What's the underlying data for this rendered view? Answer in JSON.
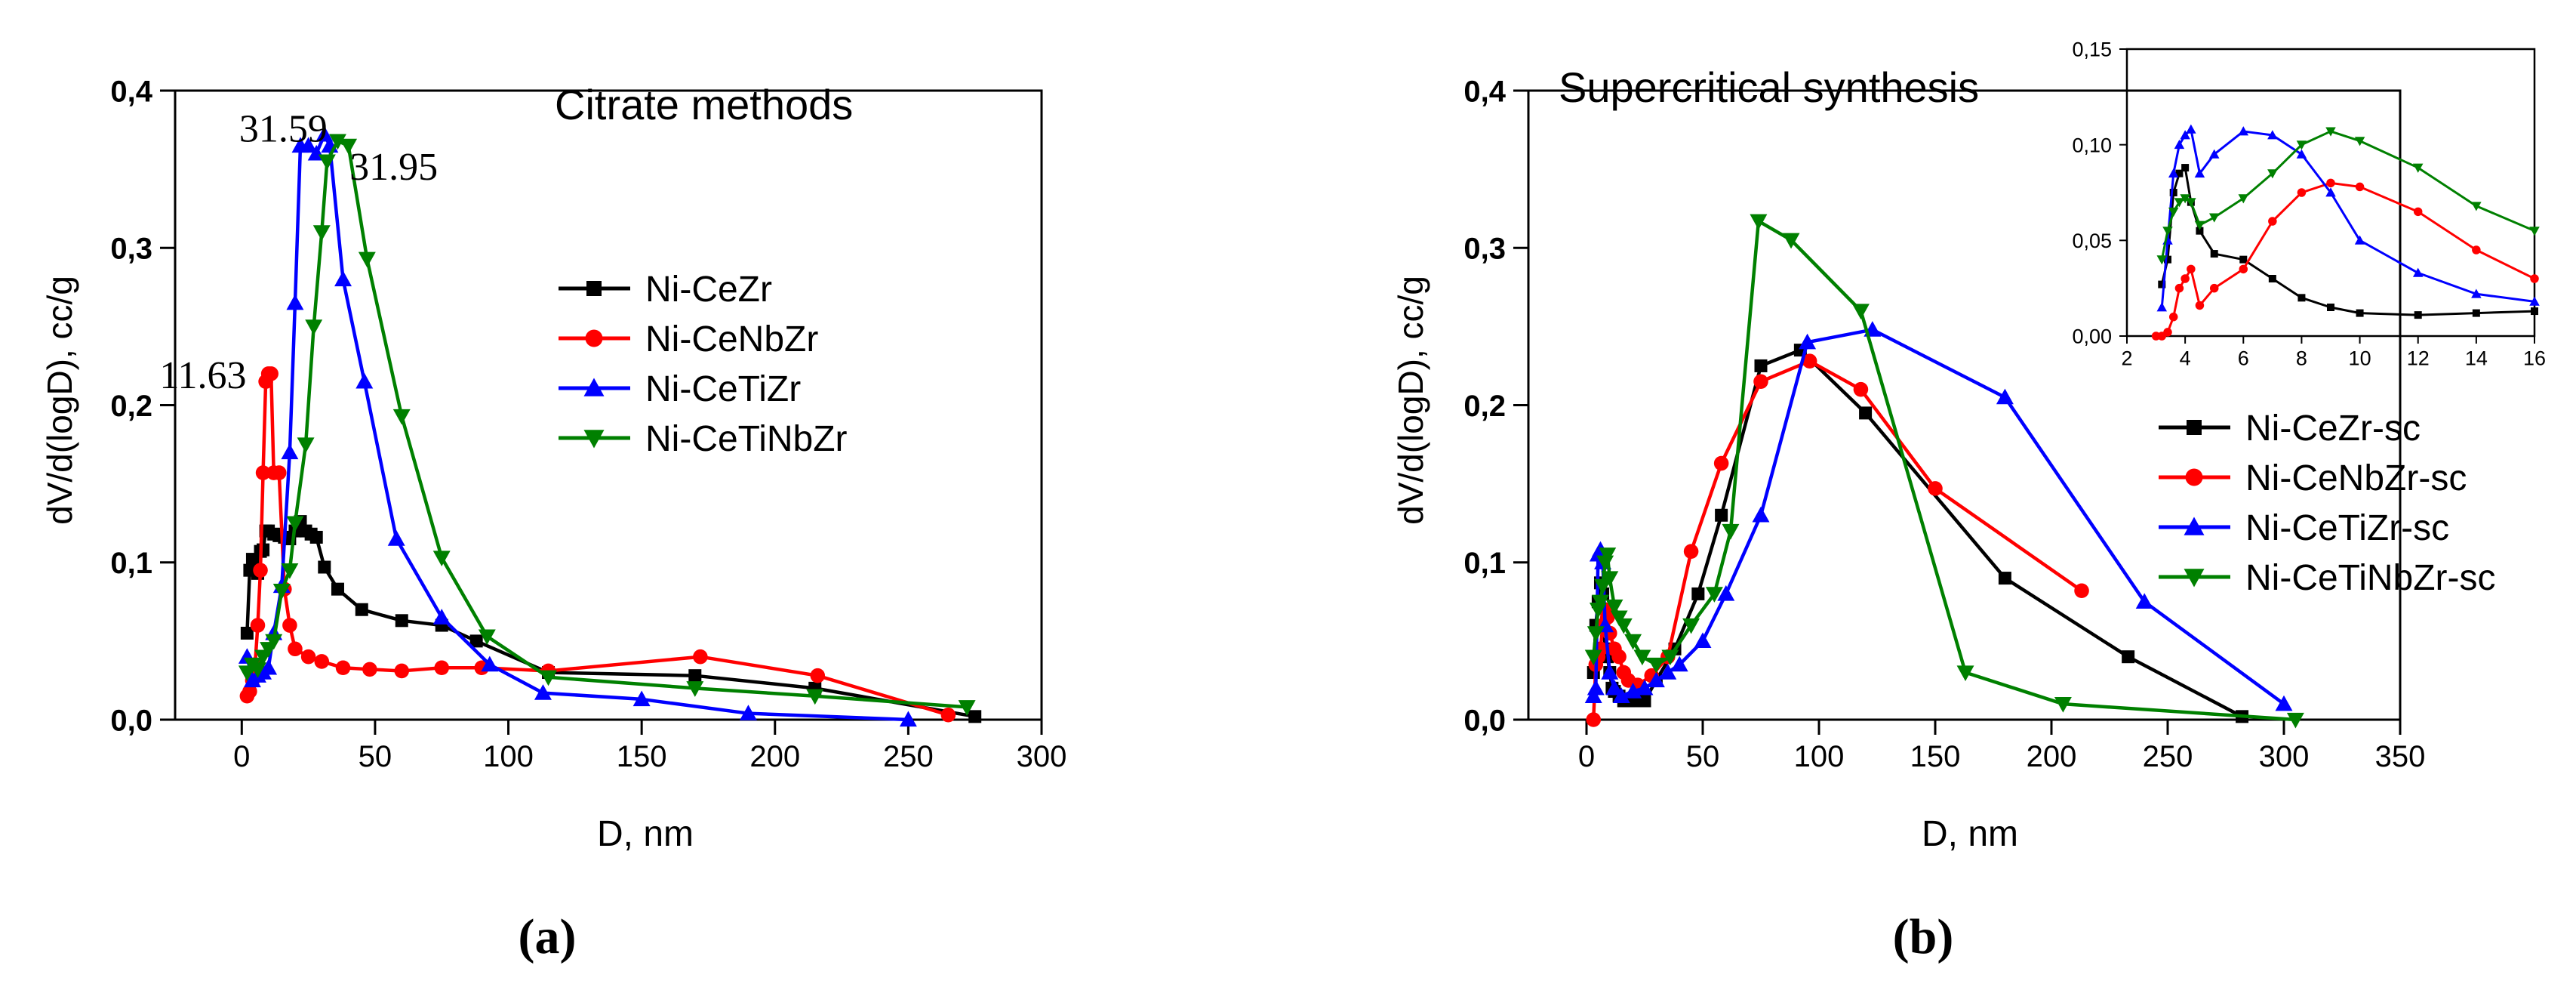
{
  "chart_data": [
    {
      "type": "line",
      "panel_label": "(a)",
      "title": "Citrate methods",
      "xlabel": "D, nm",
      "ylabel": "dV/d(logD), cc/g",
      "xlim": [
        -25,
        300
      ],
      "ylim": [
        0,
        0.4
      ],
      "xticks": [
        "0",
        "50",
        "100",
        "150",
        "200",
        "250",
        "300"
      ],
      "yticks": [
        "0,0",
        "0,1",
        "0,2",
        "0,3",
        "0,4"
      ],
      "legend_position": "right",
      "annotations": [
        {
          "text": "31.59",
          "x": 31.59,
          "y": 0.37
        },
        {
          "text": "31.95",
          "x": 31.95,
          "y": 0.365
        },
        {
          "text": "11.63",
          "x": 11.63,
          "y": 0.218
        }
      ],
      "series": [
        {
          "name": "Ni-CeZr",
          "color": "#000000",
          "marker": "square",
          "x": [
            2,
            3,
            4,
            5,
            6,
            7,
            8,
            9,
            10,
            12,
            14,
            16,
            18,
            20,
            22,
            24,
            26,
            28,
            31,
            36,
            45,
            60,
            75,
            88,
            115,
            170,
            215,
            275
          ],
          "y": [
            0.055,
            0.095,
            0.102,
            0.098,
            0.093,
            0.107,
            0.108,
            0.12,
            0.12,
            0.118,
            0.117,
            0.116,
            0.115,
            0.12,
            0.126,
            0.12,
            0.118,
            0.116,
            0.097,
            0.083,
            0.07,
            0.063,
            0.06,
            0.05,
            0.03,
            0.028,
            0.02,
            0.002
          ]
        },
        {
          "name": "Ni-CeNbZr",
          "color": "#ff0000",
          "marker": "circle",
          "x": [
            2,
            3,
            4,
            5,
            6,
            7,
            8,
            9,
            10,
            11,
            12,
            14,
            16,
            18,
            20,
            25,
            30,
            38,
            48,
            60,
            75,
            90,
            115,
            172,
            216,
            265
          ],
          "y": [
            0.015,
            0.018,
            0.025,
            0.035,
            0.06,
            0.095,
            0.157,
            0.215,
            0.22,
            0.22,
            0.157,
            0.157,
            0.083,
            0.06,
            0.045,
            0.04,
            0.037,
            0.033,
            0.032,
            0.031,
            0.033,
            0.033,
            0.031,
            0.04,
            0.028,
            0.003
          ]
        },
        {
          "name": "Ni-CeTiZr",
          "color": "#0000ff",
          "marker": "triangle-up",
          "x": [
            2,
            4,
            6,
            8,
            10,
            12,
            15,
            18,
            20,
            22,
            25,
            28,
            31,
            33,
            38,
            46,
            58,
            75,
            93,
            113,
            150,
            190,
            250
          ],
          "y": [
            0.04,
            0.025,
            0.028,
            0.03,
            0.033,
            0.055,
            0.085,
            0.17,
            0.265,
            0.365,
            0.365,
            0.36,
            0.372,
            0.365,
            0.28,
            0.215,
            0.115,
            0.065,
            0.035,
            0.017,
            0.013,
            0.004,
            0
          ]
        },
        {
          "name": "Ni-CeTiNbZr",
          "color": "#008000",
          "marker": "triangle-down",
          "x": [
            2,
            4,
            6,
            8,
            10,
            12,
            15,
            18,
            20,
            24,
            27,
            30,
            32,
            36,
            40,
            47,
            60,
            75,
            92,
            115,
            170,
            215,
            272
          ],
          "y": [
            0.03,
            0.035,
            0.032,
            0.04,
            0.045,
            0.05,
            0.082,
            0.095,
            0.125,
            0.175,
            0.25,
            0.31,
            0.355,
            0.368,
            0.365,
            0.293,
            0.193,
            0.103,
            0.053,
            0.027,
            0.02,
            0.015,
            0.008
          ]
        }
      ]
    },
    {
      "type": "line",
      "panel_label": "(b)",
      "title": "Supercritical synthesis",
      "xlabel": "D, nm",
      "ylabel": "dV/d(logD), cc/g",
      "xlim": [
        -25,
        350
      ],
      "ylim": [
        0,
        0.4
      ],
      "xticks": [
        "0",
        "50",
        "100",
        "150",
        "200",
        "250",
        "300",
        "350"
      ],
      "yticks": [
        "0,0",
        "0,1",
        "0,2",
        "0,3",
        "0,4"
      ],
      "legend_position": "right",
      "series": [
        {
          "name": "Ni-CeZr-sc",
          "color": "#000000",
          "marker": "square",
          "x": [
            3,
            4,
            5,
            6,
            7,
            8,
            9,
            10,
            11,
            12,
            14,
            16,
            18,
            20,
            25,
            30,
            38,
            48,
            58,
            75,
            92,
            120,
            180,
            233,
            282
          ],
          "y": [
            0.03,
            0.06,
            0.075,
            0.087,
            0.08,
            0.045,
            0.04,
            0.03,
            0.02,
            0.018,
            0.015,
            0.012,
            0.012,
            0.012,
            0.012,
            0.025,
            0.045,
            0.08,
            0.13,
            0.225,
            0.235,
            0.195,
            0.09,
            0.04,
            0.002
          ]
        },
        {
          "name": "Ni-CeNbZr-sc",
          "color": "#ff0000",
          "marker": "circle",
          "x": [
            3,
            4,
            5,
            6,
            7,
            8,
            9,
            10,
            12,
            14,
            16,
            18,
            22,
            28,
            35,
            45,
            58,
            75,
            96,
            118,
            150,
            213
          ],
          "y": [
            0,
            0.035,
            0.04,
            0.045,
            0.06,
            0.07,
            0.065,
            0.055,
            0.045,
            0.04,
            0.03,
            0.025,
            0.022,
            0.028,
            0.04,
            0.107,
            0.163,
            0.215,
            0.228,
            0.21,
            0.147,
            0.082
          ]
        },
        {
          "name": "Ni-CeTiZr-sc",
          "color": "#0000ff",
          "marker": "triangle-up",
          "x": [
            3,
            4,
            5,
            6,
            7,
            8,
            10,
            12,
            15,
            20,
            25,
            30,
            35,
            40,
            50,
            60,
            75,
            95,
            123,
            180,
            240,
            300
          ],
          "y": [
            0.015,
            0.02,
            0.105,
            0.108,
            0.1,
            0.06,
            0.03,
            0.02,
            0.015,
            0.018,
            0.02,
            0.025,
            0.03,
            0.035,
            0.05,
            0.08,
            0.13,
            0.24,
            0.248,
            0.205,
            0.075,
            0.01
          ]
        },
        {
          "name": "Ni-CeTiNbZr-sc",
          "color": "#008000",
          "marker": "triangle-down",
          "x": [
            3,
            4,
            5,
            6,
            7,
            8,
            9,
            10,
            12,
            14,
            16,
            20,
            24,
            30,
            36,
            45,
            55,
            62,
            74,
            88,
            118,
            163,
            205,
            305
          ],
          "y": [
            0.04,
            0.055,
            0.07,
            0.075,
            0.085,
            0.1,
            0.105,
            0.09,
            0.072,
            0.065,
            0.06,
            0.05,
            0.04,
            0.035,
            0.04,
            0.06,
            0.08,
            0.12,
            0.317,
            0.305,
            0.26,
            0.03,
            0.01,
            0
          ]
        }
      ],
      "inset": {
        "xlim": [
          2,
          16
        ],
        "ylim": [
          0,
          0.15
        ],
        "xticks": [
          "2",
          "4",
          "6",
          "8",
          "10",
          "12",
          "14",
          "16"
        ],
        "yticks": [
          "0,00",
          "0,05",
          "0,10",
          "0,15"
        ],
        "series": [
          {
            "name": "Ni-CeZr-sc",
            "color": "#000000",
            "marker": "square",
            "x": [
              3.2,
              3.4,
              3.6,
              3.8,
              4.0,
              4.2,
              4.5,
              5,
              6,
              7,
              8,
              9,
              10,
              12,
              14,
              16
            ],
            "y": [
              0.027,
              0.04,
              0.075,
              0.085,
              0.088,
              0.07,
              0.055,
              0.043,
              0.04,
              0.03,
              0.02,
              0.015,
              0.012,
              0.011,
              0.012,
              0.013
            ]
          },
          {
            "name": "Ni-CeNbZr-sc",
            "color": "#ff0000",
            "marker": "circle",
            "x": [
              3,
              3.2,
              3.4,
              3.6,
              3.8,
              4.0,
              4.2,
              4.5,
              5,
              6,
              7,
              8,
              9,
              10,
              12,
              14,
              16
            ],
            "y": [
              0,
              0,
              0.002,
              0.01,
              0.025,
              0.03,
              0.035,
              0.016,
              0.025,
              0.035,
              0.06,
              0.075,
              0.08,
              0.078,
              0.065,
              0.045,
              0.03
            ]
          },
          {
            "name": "Ni-CeTiZr-sc",
            "color": "#0000ff",
            "marker": "triangle-up",
            "x": [
              3.2,
              3.4,
              3.6,
              3.8,
              4.0,
              4.2,
              4.5,
              5,
              6,
              7,
              8,
              9,
              10,
              12,
              14,
              16
            ],
            "y": [
              0.015,
              0.05,
              0.085,
              0.1,
              0.105,
              0.108,
              0.085,
              0.095,
              0.107,
              0.105,
              0.095,
              0.075,
              0.05,
              0.033,
              0.022,
              0.018
            ]
          },
          {
            "name": "Ni-CeTiNbZr-sc",
            "color": "#008000",
            "marker": "triangle-down",
            "x": [
              3.2,
              3.4,
              3.6,
              3.8,
              4.0,
              4.2,
              4.5,
              5,
              6,
              7,
              8,
              9,
              10,
              12,
              14,
              16
            ],
            "y": [
              0.04,
              0.055,
              0.065,
              0.07,
              0.072,
              0.07,
              0.058,
              0.062,
              0.072,
              0.085,
              0.1,
              0.107,
              0.102,
              0.088,
              0.068,
              0.055
            ]
          }
        ]
      }
    }
  ]
}
